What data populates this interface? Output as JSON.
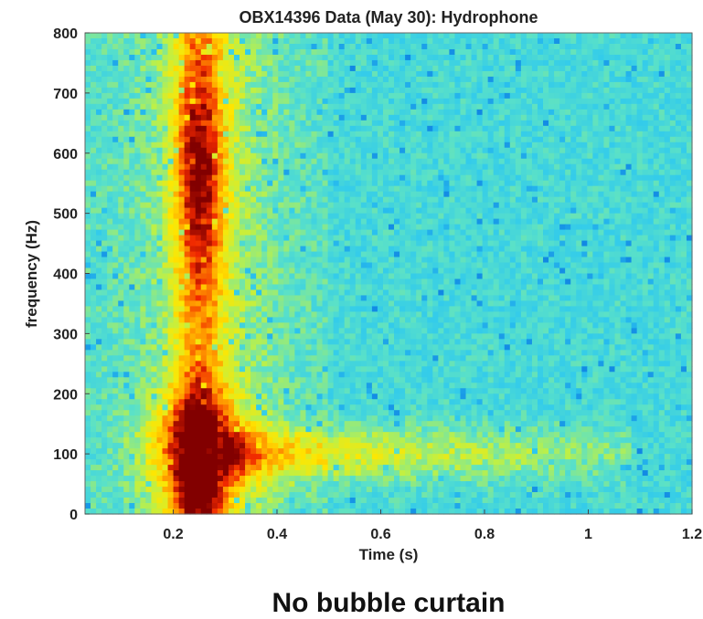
{
  "chart_data": {
    "type": "heatmap",
    "title": "OBX14396 Data (May 30): Hydrophone",
    "xlabel": "Time (s)",
    "ylabel": "frequency (Hz)",
    "caption": "No bubble curtain",
    "xlim": [
      0.03,
      1.2
    ],
    "ylim": [
      0,
      800
    ],
    "xticks": [
      {
        "value": 0.2,
        "label": "0.2"
      },
      {
        "value": 0.4,
        "label": "0.4"
      },
      {
        "value": 0.6,
        "label": "0.6"
      },
      {
        "value": 0.8,
        "label": "0.8"
      },
      {
        "value": 1.0,
        "label": "1"
      },
      {
        "value": 1.2,
        "label": "1.2"
      }
    ],
    "yticks": [
      {
        "value": 0,
        "label": "0"
      },
      {
        "value": 100,
        "label": "100"
      },
      {
        "value": 200,
        "label": "200"
      },
      {
        "value": 300,
        "label": "300"
      },
      {
        "value": 400,
        "label": "400"
      },
      {
        "value": 500,
        "label": "500"
      },
      {
        "value": 600,
        "label": "600"
      },
      {
        "value": 700,
        "label": "700"
      },
      {
        "value": 800,
        "label": "800"
      }
    ],
    "colormap": "jet",
    "colors": {
      "low": "#0a7fe0",
      "mid_low": "#35dde0",
      "mid": "#c6ef3c",
      "mid_high": "#ffd400",
      "high": "#ff4a00",
      "max": "#8a0000"
    },
    "features": [
      {
        "name": "ridge",
        "t_center": 0.25,
        "t_width": 0.06,
        "f_range": [
          0,
          800
        ],
        "intensity": 0.9
      },
      {
        "name": "low-frequency blob",
        "t_center": 0.24,
        "f_center": 100,
        "intensity": 1.0
      },
      {
        "name": "low-frequency tail",
        "t_range": [
          0.35,
          1.05
        ],
        "f_center": 100,
        "intensity": 0.6
      }
    ]
  }
}
